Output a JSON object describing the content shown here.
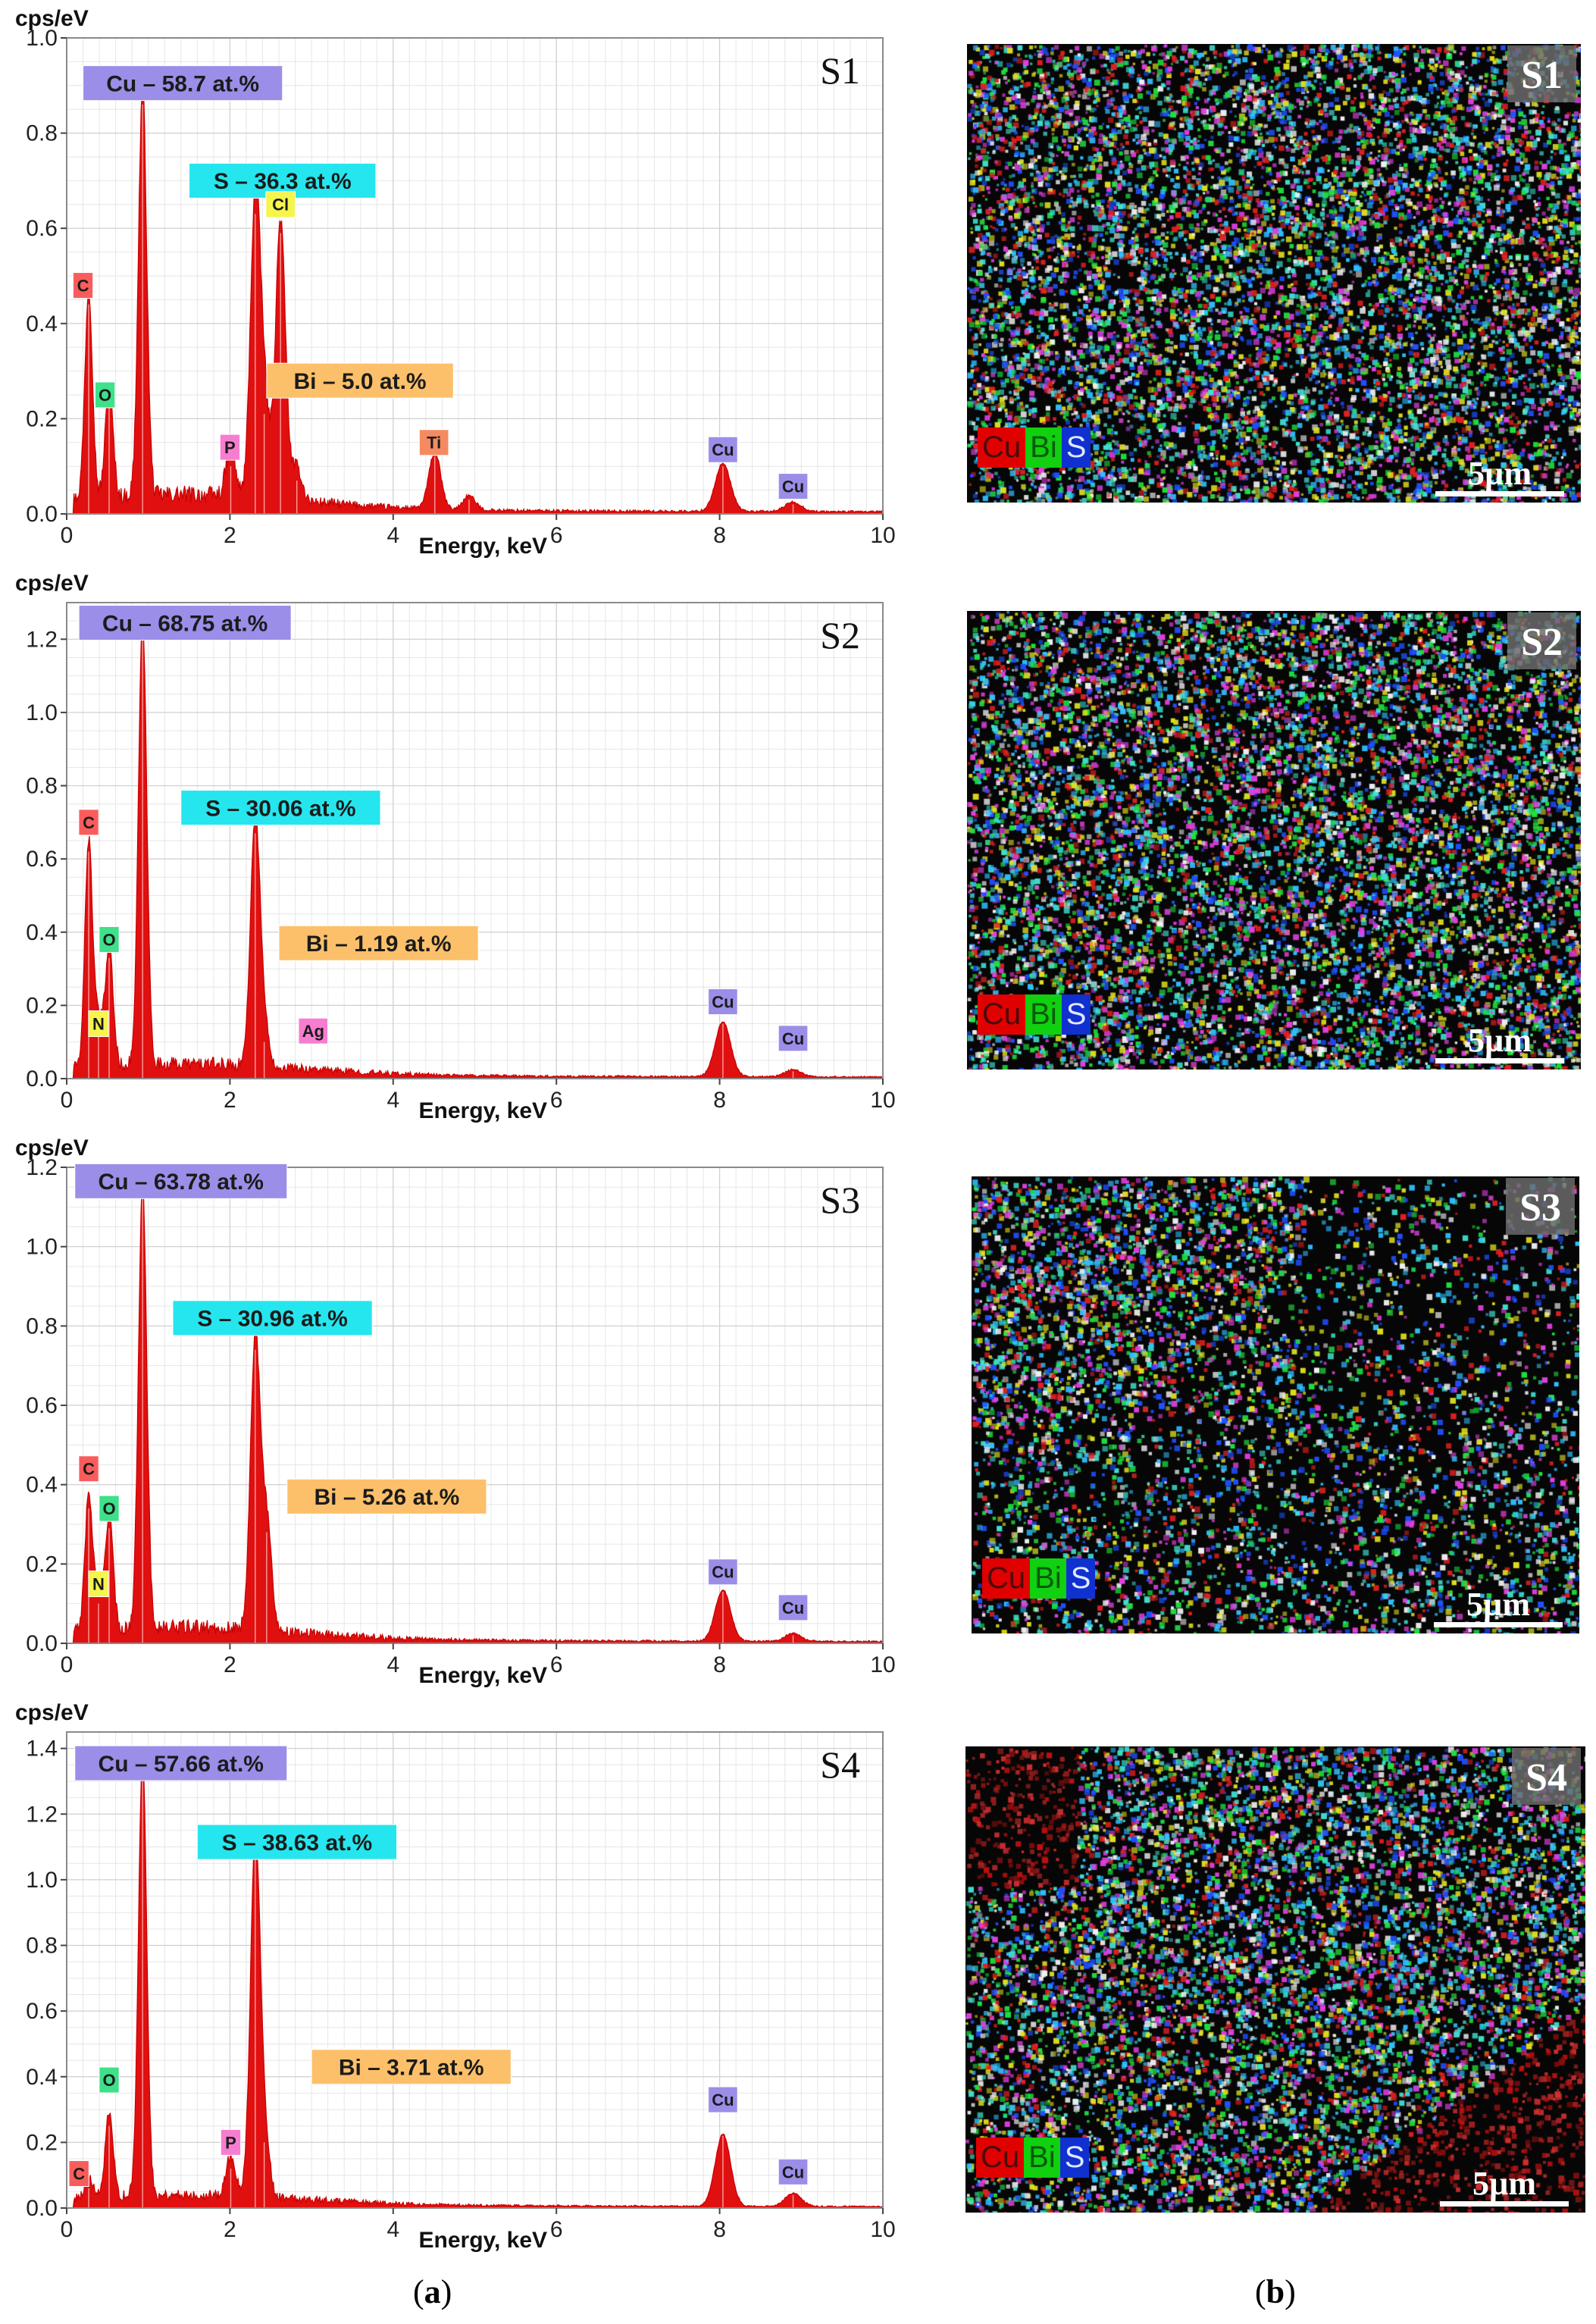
{
  "captions": {
    "left": "a",
    "right": "b"
  },
  "maps": [
    {
      "tag": "S1",
      "legend": [
        "Cu",
        "Bi",
        "S"
      ],
      "scale": "5µm",
      "seed": 11,
      "bias": "uniform"
    },
    {
      "tag": "S2",
      "legend": [
        "Cu",
        "Bi",
        "S"
      ],
      "scale": "5µm",
      "seed": 23,
      "bias": "uniform"
    },
    {
      "tag": "S3",
      "legend": [
        "Cu",
        "Bi",
        "S"
      ],
      "scale": "5µm",
      "seed": 37,
      "bias": "topleft"
    },
    {
      "tag": "S4",
      "legend": [
        "Cu",
        "Bi",
        "S"
      ],
      "scale": "5µm",
      "seed": 51,
      "bias": "diagonal"
    }
  ],
  "chart_data": [
    {
      "type": "line",
      "title": "S1",
      "xlabel": "Energy, keV",
      "ylabel": "cps/eV",
      "xlim": [
        0,
        10
      ],
      "ylim": [
        0,
        1.0
      ],
      "xticks": [
        "0",
        "2",
        "4",
        "6",
        "8",
        "10"
      ],
      "yticks": [
        "0.0",
        "0.2",
        "0.4",
        "0.6",
        "0.8",
        "1.0"
      ],
      "peaks": [
        {
          "x": 0.27,
          "y": 0.44
        },
        {
          "x": 0.52,
          "y": 0.23
        },
        {
          "x": 0.93,
          "y": 0.86
        },
        {
          "x": 2.01,
          "y": 0.1
        },
        {
          "x": 2.31,
          "y": 0.63
        },
        {
          "x": 2.42,
          "y": 0.21
        },
        {
          "x": 2.62,
          "y": 0.59
        },
        {
          "x": 2.82,
          "y": 0.07
        },
        {
          "x": 4.51,
          "y": 0.12
        },
        {
          "x": 4.93,
          "y": 0.03
        },
        {
          "x": 8.04,
          "y": 0.1
        },
        {
          "x": 8.9,
          "y": 0.02
        }
      ],
      "labels": [
        {
          "text": "Cu – 58.7 at.%",
          "color": "#9b8ee8",
          "x": 0.2,
          "y": 0.905
        },
        {
          "text": "S – 36.3 at.%",
          "color": "#25e6ee",
          "x": 1.5,
          "y": 0.7
        },
        {
          "text": "Bi – 5.0 at.%",
          "color": "#fcc06b",
          "x": 2.45,
          "y": 0.28
        },
        {
          "text": "C",
          "color": "#fa5c5c",
          "x": 0.2,
          "y": 0.48,
          "small": true
        },
        {
          "text": "O",
          "color": "#3ee08a",
          "x": 0.47,
          "y": 0.25,
          "small": true
        },
        {
          "text": "P",
          "color": "#f77dd0",
          "x": 2.0,
          "y": 0.14,
          "small": true
        },
        {
          "text": "Cl",
          "color": "#f5f54c",
          "x": 2.62,
          "y": 0.65,
          "small": true
        },
        {
          "text": "Ti",
          "color": "#f58a60",
          "x": 4.5,
          "y": 0.15,
          "small": true
        },
        {
          "text": "Cu",
          "color": "#9b8ee8",
          "x": 8.04,
          "y": 0.135,
          "small": true
        },
        {
          "text": "Cu",
          "color": "#9b8ee8",
          "x": 8.9,
          "y": 0.058,
          "small": true
        }
      ]
    },
    {
      "type": "line",
      "title": "S2",
      "xlabel": "Energy, keV",
      "ylabel": "cps/eV",
      "xlim": [
        0,
        10
      ],
      "ylim": [
        0,
        1.3
      ],
      "xticks": [
        "0",
        "2",
        "4",
        "6",
        "8",
        "10"
      ],
      "yticks": [
        "0.0",
        "0.2",
        "0.4",
        "0.6",
        "0.8",
        "1.0",
        "1.2"
      ],
      "peaks": [
        {
          "x": 0.27,
          "y": 0.62
        },
        {
          "x": 0.39,
          "y": 0.12
        },
        {
          "x": 0.52,
          "y": 0.33
        },
        {
          "x": 0.93,
          "y": 1.22
        },
        {
          "x": 2.31,
          "y": 0.67
        },
        {
          "x": 2.42,
          "y": 0.1
        },
        {
          "x": 8.04,
          "y": 0.15
        },
        {
          "x": 8.9,
          "y": 0.02
        }
      ],
      "labels": [
        {
          "text": "Cu – 68.75 at.%",
          "color": "#9b8ee8",
          "x": 0.15,
          "y": 1.245
        },
        {
          "text": "S – 30.06 at.%",
          "color": "#25e6ee",
          "x": 1.4,
          "y": 0.74
        },
        {
          "text": "Bi – 1.19 at.%",
          "color": "#fcc06b",
          "x": 2.6,
          "y": 0.37
        },
        {
          "text": "C",
          "color": "#fa5c5c",
          "x": 0.27,
          "y": 0.7,
          "small": true
        },
        {
          "text": "O",
          "color": "#3ee08a",
          "x": 0.52,
          "y": 0.38,
          "small": true
        },
        {
          "text": "N",
          "color": "#f5f54c",
          "x": 0.39,
          "y": 0.15,
          "small": true
        },
        {
          "text": "Ag",
          "color": "#f77dd0",
          "x": 3.02,
          "y": 0.13,
          "small": true
        },
        {
          "text": "Cu",
          "color": "#9b8ee8",
          "x": 8.04,
          "y": 0.21,
          "small": true
        },
        {
          "text": "Cu",
          "color": "#9b8ee8",
          "x": 8.9,
          "y": 0.11,
          "small": true
        }
      ]
    },
    {
      "type": "line",
      "title": "S3",
      "xlabel": "Energy, keV",
      "ylabel": "cps/eV",
      "xlim": [
        0,
        10
      ],
      "ylim": [
        0,
        1.2
      ],
      "xticks": [
        "0",
        "2",
        "4",
        "6",
        "8",
        "10"
      ],
      "yticks": [
        "0.0",
        "0.2",
        "0.4",
        "0.6",
        "0.8",
        "1.0",
        "1.2"
      ],
      "peaks": [
        {
          "x": 0.27,
          "y": 0.34
        },
        {
          "x": 0.39,
          "y": 0.1
        },
        {
          "x": 0.52,
          "y": 0.29
        },
        {
          "x": 0.93,
          "y": 1.13
        },
        {
          "x": 2.31,
          "y": 0.74
        },
        {
          "x": 2.45,
          "y": 0.28
        },
        {
          "x": 8.04,
          "y": 0.13
        },
        {
          "x": 8.9,
          "y": 0.02
        }
      ],
      "labels": [
        {
          "text": "Cu – 63.78 at.%",
          "color": "#9b8ee8",
          "x": 0.1,
          "y": 1.165
        },
        {
          "text": "S – 30.96 at.%",
          "color": "#25e6ee",
          "x": 1.3,
          "y": 0.82
        },
        {
          "text": "Bi – 5.26 at.%",
          "color": "#fcc06b",
          "x": 2.7,
          "y": 0.37
        },
        {
          "text": "C",
          "color": "#fa5c5c",
          "x": 0.27,
          "y": 0.44,
          "small": true
        },
        {
          "text": "O",
          "color": "#3ee08a",
          "x": 0.52,
          "y": 0.34,
          "small": true
        },
        {
          "text": "N",
          "color": "#f5f54c",
          "x": 0.39,
          "y": 0.15,
          "small": true
        },
        {
          "text": "Cu",
          "color": "#9b8ee8",
          "x": 8.04,
          "y": 0.18,
          "small": true
        },
        {
          "text": "Cu",
          "color": "#9b8ee8",
          "x": 8.9,
          "y": 0.09,
          "small": true
        }
      ]
    },
    {
      "type": "line",
      "title": "S4",
      "xlabel": "Energy, keV",
      "ylabel": "cps/eV",
      "xlim": [
        0,
        10
      ],
      "ylim": [
        0,
        1.45
      ],
      "xticks": [
        "0",
        "2",
        "4",
        "6",
        "8",
        "10"
      ],
      "yticks": [
        "0.0",
        "0.2",
        "0.4",
        "0.6",
        "0.8",
        "1.0",
        "1.2",
        "1.4"
      ],
      "peaks": [
        {
          "x": 0.27,
          "y": 0.06
        },
        {
          "x": 0.52,
          "y": 0.25
        },
        {
          "x": 0.93,
          "y": 1.34
        },
        {
          "x": 2.01,
          "y": 0.12
        },
        {
          "x": 2.31,
          "y": 1.08
        },
        {
          "x": 2.42,
          "y": 0.2
        },
        {
          "x": 8.04,
          "y": 0.22
        },
        {
          "x": 8.9,
          "y": 0.04
        }
      ],
      "labels": [
        {
          "text": "Cu – 57.66 at.%",
          "color": "#9b8ee8",
          "x": 0.1,
          "y": 1.355
        },
        {
          "text": "S – 38.63 at.%",
          "color": "#25e6ee",
          "x": 1.6,
          "y": 1.115
        },
        {
          "text": "Bi – 3.71 at.%",
          "color": "#fcc06b",
          "x": 3.0,
          "y": 0.43
        },
        {
          "text": "C",
          "color": "#fa5c5c",
          "x": 0.15,
          "y": 0.105,
          "small": true
        },
        {
          "text": "O",
          "color": "#3ee08a",
          "x": 0.52,
          "y": 0.39,
          "small": true
        },
        {
          "text": "P",
          "color": "#f77dd0",
          "x": 2.01,
          "y": 0.2,
          "small": true
        },
        {
          "text": "Cu",
          "color": "#9b8ee8",
          "x": 8.04,
          "y": 0.33,
          "small": true
        },
        {
          "text": "Cu",
          "color": "#9b8ee8",
          "x": 8.9,
          "y": 0.11,
          "small": true
        }
      ]
    }
  ]
}
